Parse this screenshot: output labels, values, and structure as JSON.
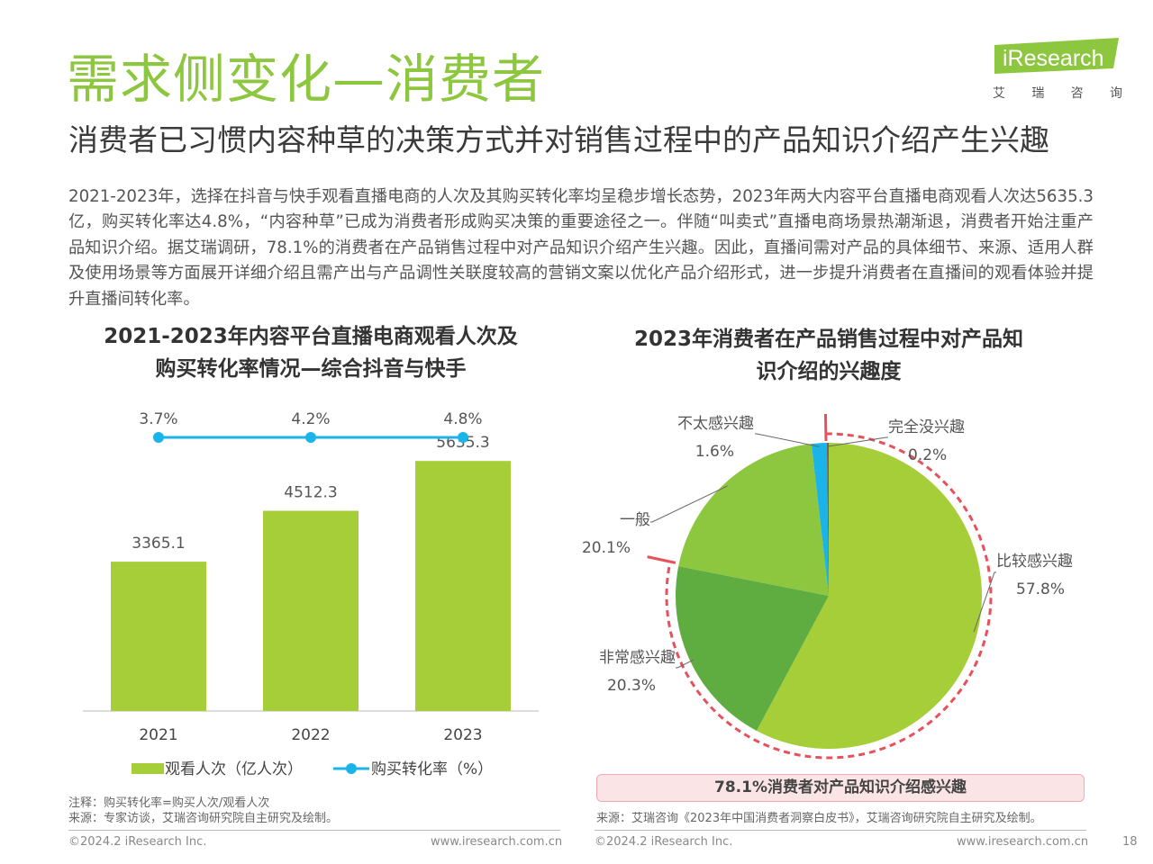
{
  "page": {
    "title": "需求侧变化—消费者",
    "subtitle": "消费者已习惯内容种草的决策方式并对销售过程中的产品知识介绍产生兴趣",
    "intro": "2021-2023年，选择在抖音与快手观看直播电商的人次及其购买转化率均呈稳步增长态势，2023年两大内容平台直播电商观看人次达5635.3亿，购买转化率达4.8%，“内容种草”已成为消费者形成购买决策的重要途径之一。伴随“叫卖式”直播电商场景热潮渐退，消费者开始注重产品知识介绍。据艾瑞调研，78.1%的消费者在产品销售过程中对产品知识介绍产生兴趣。因此，直播间需对产品的具体细节、来源、适用人群及使用场景等方面展开详细介绍且需产出与产品调性关联度较高的营销文案以优化产品介绍形式，进一步提升消费者在直播间的观看体验并提升直播间转化率。",
    "page_number": "18"
  },
  "logo": {
    "text": "iResearch",
    "chinese": [
      "艾",
      "瑞",
      "咨",
      "询"
    ],
    "color": "#8dc63f"
  },
  "chart_data": [
    {
      "type": "bar",
      "title_lines": [
        "2021-2023年内容平台直播电商观看人次及",
        "购买转化率情况—综合抖音与快手"
      ],
      "categories": [
        "2021",
        "2022",
        "2023"
      ],
      "series": [
        {
          "name": "观看人次（亿人次）",
          "type": "bar",
          "values": [
            3365.1,
            4512.3,
            5635.3
          ],
          "labels": [
            "3365.1",
            "4512.3",
            "5635.3"
          ],
          "color": "#a6ce39"
        },
        {
          "name": "购买转化率（%）",
          "type": "line",
          "values": [
            3.7,
            4.2,
            4.8
          ],
          "labels": [
            "3.7%",
            "4.2%",
            "4.8%"
          ],
          "color": "#1bb4e8"
        }
      ],
      "ylim": [
        0,
        6000
      ],
      "legend": "bottom"
    },
    {
      "type": "pie",
      "title_lines": [
        "2023年消费者在产品销售过程中对产品知",
        "识介绍的兴趣度"
      ],
      "slices": [
        {
          "name": "比较感兴趣",
          "value": 57.8,
          "label": "57.8%",
          "color": "#a6ce39"
        },
        {
          "name": "非常感兴趣",
          "value": 20.3,
          "label": "20.3%",
          "color": "#5fad41"
        },
        {
          "name": "一般",
          "value": 20.1,
          "label": "20.1%",
          "color": "#8dc63f"
        },
        {
          "name": "不太感兴趣",
          "value": 1.6,
          "label": "1.6%",
          "color": "#1bb4e8"
        },
        {
          "name": "完全没兴趣",
          "value": 0.2,
          "label": "0.2%",
          "color": "#666666"
        }
      ],
      "highlight": "78.1%消费者对产品知识介绍感兴趣",
      "highlight_color": "#e8505b"
    }
  ],
  "notes": {
    "note": "注释：购买转化率=购买人次/观看人次",
    "source_left": "来源：专家访谈，艾瑞咨询研究院自主研究及绘制。",
    "source_right": "来源：艾瑞咨询《2023年中国消费者洞察白皮书》，艾瑞咨询研究院自主研究及绘制。"
  },
  "footer": {
    "copyright_left": "©2024.2 iResearch Inc.",
    "url_left": "www.iresearch.com.cn",
    "copyright_right": "©2024.2 iResearch Inc.",
    "url_right": "www.iresearch.com.cn"
  }
}
